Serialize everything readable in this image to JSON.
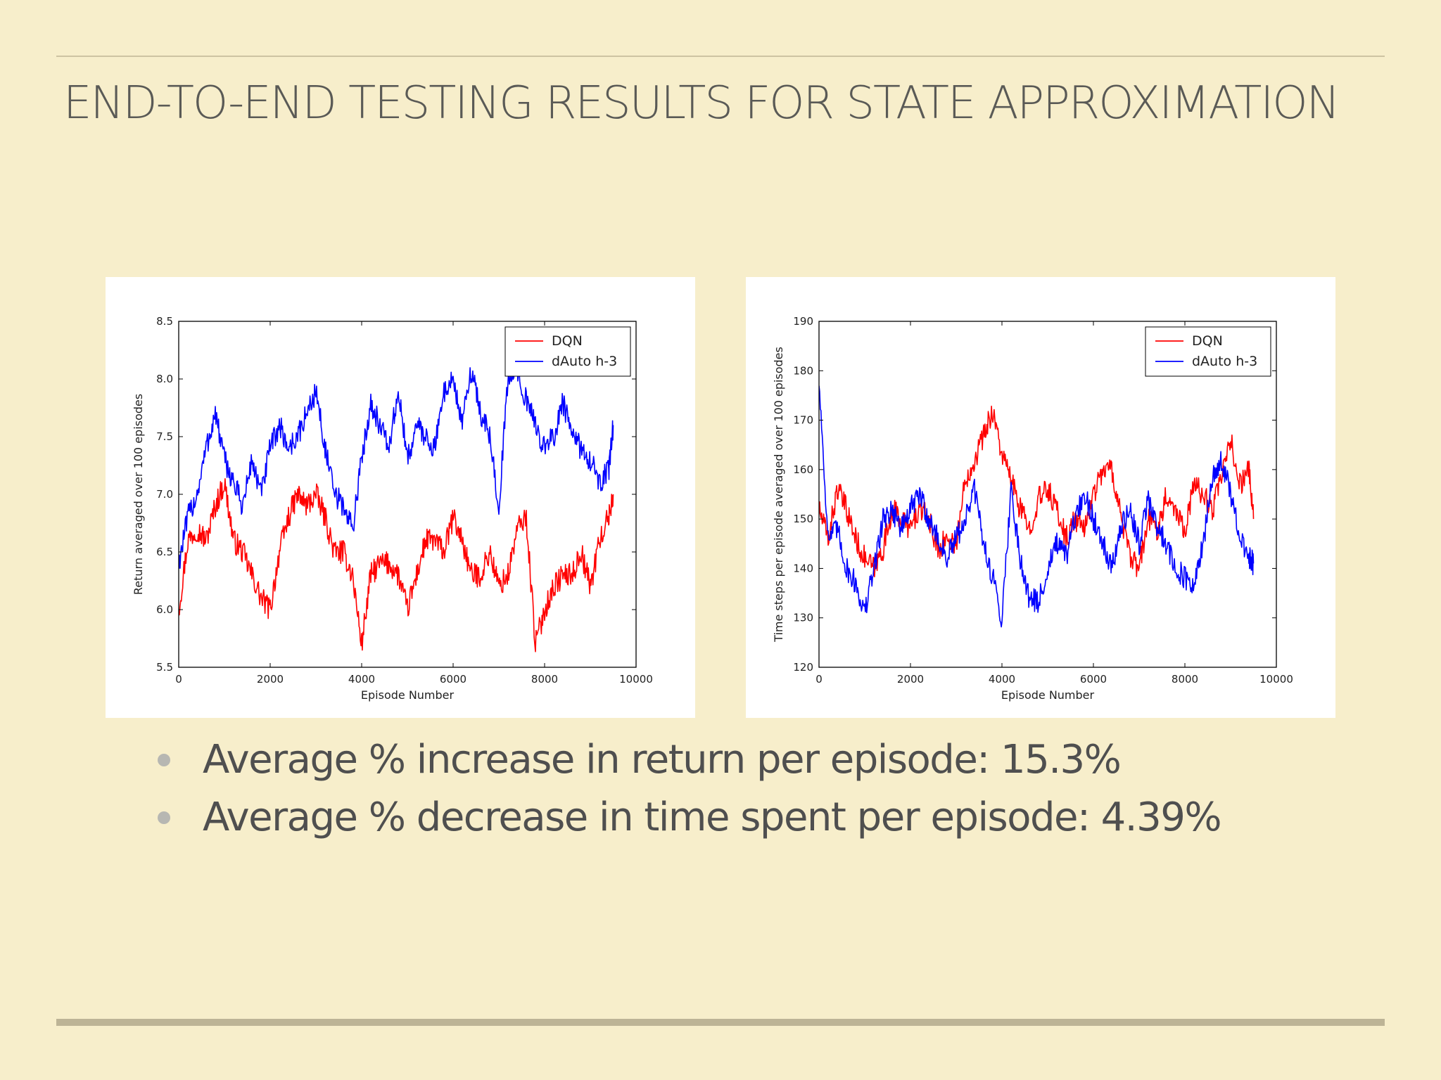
{
  "slide": {
    "title": "END-TO-END TESTING RESULTS FOR STATE APPROXIMATION",
    "bullets": [
      "Average % increase in return per episode: 15.3%",
      "Average % decrease in time spent per episode: 4.39%"
    ]
  },
  "colors": {
    "background": "#f7eecb",
    "dqn": "#ff0000",
    "dauto": "#0000ff",
    "title_text": "#5a5a56",
    "bullet_text": "#4f4f4f"
  },
  "chart_data": [
    {
      "type": "line",
      "title": "",
      "xlabel": "Episode Number",
      "ylabel": "Return averaged over 100 episodes",
      "xlim": [
        0,
        10000
      ],
      "ylim": [
        5.5,
        8.5
      ],
      "xticks": [
        "0",
        "2000",
        "4000",
        "6000",
        "8000",
        "10000"
      ],
      "yticks": [
        "5.5",
        "6.0",
        "6.5",
        "7.0",
        "7.5",
        "8.0",
        "8.5"
      ],
      "legend": "top-right",
      "grid": false,
      "series": [
        {
          "name": "DQN",
          "color": "#ff0000",
          "x": [
            0,
            200,
            400,
            600,
            800,
            1000,
            1200,
            1400,
            1600,
            1800,
            2000,
            2200,
            2400,
            2600,
            2800,
            3000,
            3200,
            3400,
            3600,
            3800,
            4000,
            4200,
            4400,
            4600,
            4800,
            5000,
            5200,
            5400,
            5600,
            5800,
            6000,
            6200,
            6400,
            6600,
            6800,
            7000,
            7200,
            7400,
            7600,
            7800,
            8000,
            8200,
            8400,
            8600,
            8800,
            9000,
            9200,
            9400,
            9500
          ],
          "y": [
            6.0,
            6.6,
            6.7,
            6.6,
            6.9,
            7.1,
            6.6,
            6.5,
            6.3,
            6.1,
            6.0,
            6.5,
            6.8,
            7.0,
            6.9,
            7.0,
            6.8,
            6.5,
            6.5,
            6.3,
            5.7,
            6.3,
            6.4,
            6.4,
            6.3,
            6.0,
            6.3,
            6.6,
            6.6,
            6.5,
            6.8,
            6.6,
            6.3,
            6.3,
            6.5,
            6.2,
            6.3,
            6.7,
            6.8,
            5.7,
            6.0,
            6.2,
            6.3,
            6.3,
            6.5,
            6.2,
            6.6,
            6.8,
            7.0
          ]
        },
        {
          "name": "dAuto h-3",
          "color": "#0000ff",
          "x": [
            0,
            200,
            400,
            600,
            800,
            1000,
            1200,
            1400,
            1600,
            1800,
            2000,
            2200,
            2400,
            2600,
            2800,
            3000,
            3200,
            3400,
            3600,
            3800,
            4000,
            4200,
            4400,
            4600,
            4800,
            5000,
            5200,
            5400,
            5600,
            5800,
            6000,
            6200,
            6400,
            6600,
            6800,
            7000,
            7200,
            7400,
            7600,
            7800,
            8000,
            8200,
            8400,
            8600,
            8800,
            9000,
            9200,
            9400,
            9500
          ],
          "y": [
            6.4,
            6.8,
            7.0,
            7.4,
            7.7,
            7.3,
            7.1,
            6.9,
            7.3,
            7.0,
            7.4,
            7.6,
            7.4,
            7.5,
            7.7,
            7.9,
            7.4,
            7.0,
            6.9,
            6.7,
            7.3,
            7.8,
            7.6,
            7.4,
            7.9,
            7.3,
            7.6,
            7.5,
            7.4,
            7.9,
            8.0,
            7.6,
            8.1,
            7.7,
            7.5,
            6.9,
            8.0,
            8.1,
            7.8,
            7.6,
            7.4,
            7.5,
            7.8,
            7.5,
            7.4,
            7.3,
            7.1,
            7.2,
            7.6
          ]
        }
      ]
    },
    {
      "type": "line",
      "title": "",
      "xlabel": "Episode Number",
      "ylabel": "Time steps per episode averaged over 100 episodes",
      "xlim": [
        0,
        10000
      ],
      "ylim": [
        120,
        190
      ],
      "xticks": [
        "0",
        "2000",
        "4000",
        "6000",
        "8000",
        "10000"
      ],
      "yticks": [
        "120",
        "130",
        "140",
        "150",
        "160",
        "170",
        "180",
        "190"
      ],
      "legend": "top-right",
      "grid": false,
      "series": [
        {
          "name": "DQN",
          "color": "#ff0000",
          "x": [
            0,
            200,
            400,
            600,
            800,
            1000,
            1200,
            1400,
            1600,
            1800,
            2000,
            2200,
            2400,
            2600,
            2800,
            3000,
            3200,
            3400,
            3600,
            3800,
            4000,
            4200,
            4400,
            4600,
            4800,
            5000,
            5200,
            5400,
            5600,
            5800,
            6000,
            6200,
            6400,
            6600,
            6800,
            7000,
            7200,
            7400,
            7600,
            7800,
            8000,
            8200,
            8400,
            8600,
            8800,
            9000,
            9200,
            9400,
            9500
          ],
          "y": [
            152,
            146,
            156,
            152,
            146,
            142,
            140,
            144,
            152,
            150,
            148,
            152,
            150,
            144,
            146,
            145,
            158,
            162,
            167,
            172,
            163,
            158,
            152,
            148,
            154,
            156,
            152,
            146,
            150,
            148,
            155,
            160,
            160,
            151,
            142,
            140,
            150,
            148,
            155,
            152,
            148,
            157,
            155,
            152,
            158,
            166,
            157,
            160,
            150
          ]
        },
        {
          "name": "dAuto h-3",
          "color": "#0000ff",
          "x": [
            0,
            200,
            400,
            600,
            800,
            1000,
            1200,
            1400,
            1600,
            1800,
            2000,
            2200,
            2400,
            2600,
            2800,
            3000,
            3200,
            3400,
            3600,
            3800,
            4000,
            4200,
            4400,
            4600,
            4800,
            5000,
            5200,
            5400,
            5600,
            5800,
            6000,
            6200,
            6400,
            6600,
            6800,
            7000,
            7200,
            7400,
            7600,
            7800,
            8000,
            8200,
            8400,
            8600,
            8800,
            9000,
            9200,
            9400,
            9500
          ],
          "y": [
            178,
            146,
            148,
            140,
            137,
            131,
            140,
            150,
            152,
            148,
            152,
            155,
            150,
            146,
            142,
            146,
            150,
            156,
            145,
            138,
            130,
            156,
            142,
            134,
            133,
            140,
            145,
            142,
            150,
            155,
            150,
            146,
            140,
            148,
            152,
            145,
            154,
            148,
            145,
            140,
            138,
            136,
            145,
            158,
            162,
            155,
            146,
            142,
            141
          ]
        }
      ]
    }
  ]
}
